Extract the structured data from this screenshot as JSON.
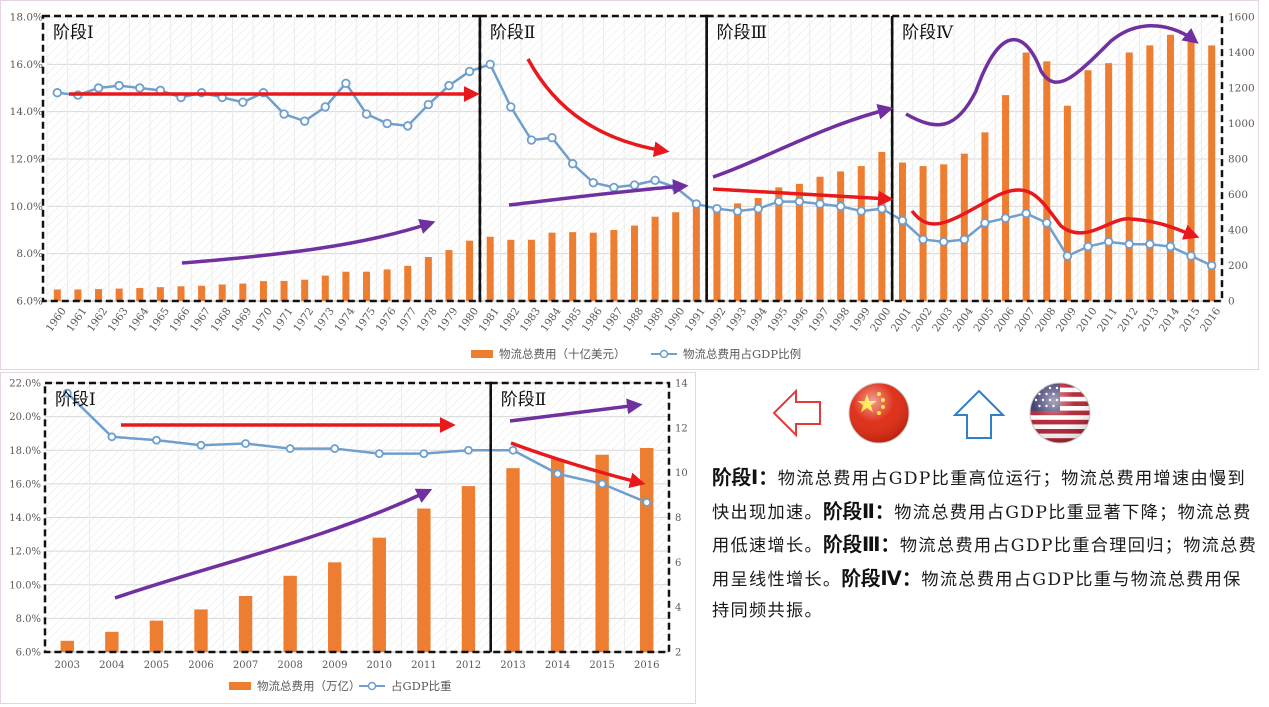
{
  "colors": {
    "bar": "#ED7D31",
    "line": "#6F9FCC",
    "red_arrow": "#E8191C",
    "purple_arrow": "#7030A0",
    "stage_border": "#111111",
    "hollow_arrow_red": "#E33B3B",
    "hollow_arrow_blue": "#2F80C8"
  },
  "chart_data": [
    {
      "type": "bar+line",
      "country": "US",
      "legend": [
        "物流总费用（十亿美元）",
        "物流总费用占GDP比例"
      ],
      "left_axis": {
        "min": 6,
        "max": 18,
        "step": 2,
        "format": "percent1"
      },
      "right_axis": {
        "min": 0,
        "max": 1600,
        "step": 200
      },
      "categories": [
        "1960",
        "1961",
        "1962",
        "1963",
        "1964",
        "1965",
        "1966",
        "1967",
        "1968",
        "1969",
        "1970",
        "1971",
        "1972",
        "1973",
        "1974",
        "1975",
        "1976",
        "1977",
        "1978",
        "1979",
        "1980",
        "1981",
        "1982",
        "1983",
        "1984",
        "1985",
        "1986",
        "1987",
        "1988",
        "1989",
        "1990",
        "1991",
        "1992",
        "1993",
        "1994",
        "1995",
        "1996",
        "1997",
        "1998",
        "1999",
        "2000",
        "2001",
        "2002",
        "2003",
        "2004",
        "2005",
        "2006",
        "2007",
        "2008",
        "2009",
        "2010",
        "2011",
        "2012",
        "2013",
        "2014",
        "2015",
        "2016"
      ],
      "series": [
        {
          "name": "物流总费用（十亿美元）",
          "kind": "bar",
          "axis": "right",
          "values": [
            65,
            65,
            67,
            70,
            73,
            78,
            83,
            86,
            93,
            98,
            112,
            113,
            120,
            143,
            165,
            165,
            178,
            198,
            248,
            287,
            340,
            362,
            345,
            345,
            385,
            388,
            385,
            400,
            425,
            475,
            500,
            560,
            540,
            550,
            580,
            640,
            660,
            700,
            730,
            760,
            840,
            780,
            760,
            770,
            830,
            950,
            1160,
            1400,
            1350,
            1100,
            1300,
            1340,
            1400,
            1440,
            1500,
            1460,
            1440
          ]
        },
        {
          "name": "物流总费用占GDP比例",
          "kind": "line",
          "axis": "left",
          "values": [
            14.8,
            14.7,
            15.0,
            15.1,
            15.0,
            14.9,
            14.6,
            14.8,
            14.6,
            14.4,
            14.8,
            13.9,
            13.6,
            14.2,
            15.2,
            13.9,
            13.5,
            13.4,
            14.3,
            15.1,
            15.7,
            16.0,
            14.2,
            12.8,
            12.9,
            11.8,
            11.0,
            10.8,
            10.9,
            11.1,
            10.8,
            10.1,
            9.9,
            9.8,
            9.9,
            10.2,
            10.2,
            10.1,
            10.0,
            9.8,
            9.9,
            9.4,
            8.6,
            8.5,
            8.6,
            9.3,
            9.5,
            9.7,
            9.3,
            7.9,
            8.3,
            8.5,
            8.4,
            8.4,
            8.3,
            7.9,
            7.5
          ]
        }
      ],
      "stages": [
        {
          "label": "阶段Ⅰ",
          "from": "1960",
          "to": "1980"
        },
        {
          "label": "阶段Ⅱ",
          "from": "1981",
          "to": "1991"
        },
        {
          "label": "阶段Ⅲ",
          "from": "1992",
          "to": "2000"
        },
        {
          "label": "阶段Ⅳ",
          "from": "2001",
          "to": "2016"
        }
      ]
    },
    {
      "type": "bar+line",
      "country": "China",
      "legend": [
        "物流总费用（万亿）",
        "占GDP比重"
      ],
      "left_axis": {
        "min": 6,
        "max": 22,
        "step": 2,
        "format": "percent1"
      },
      "right_axis": {
        "min": 2,
        "max": 14,
        "step": 2
      },
      "categories": [
        "2003",
        "2004",
        "2005",
        "2006",
        "2007",
        "2008",
        "2009",
        "2010",
        "2011",
        "2012",
        "2013",
        "2014",
        "2015",
        "2016"
      ],
      "series": [
        {
          "name": "物流总费用（万亿）",
          "kind": "bar",
          "axis": "right",
          "values": [
            2.5,
            2.9,
            3.4,
            3.9,
            4.5,
            5.4,
            6.0,
            7.1,
            8.4,
            9.4,
            10.2,
            10.6,
            10.8,
            11.1
          ]
        },
        {
          "name": "占GDP比重",
          "kind": "line",
          "axis": "left",
          "values": [
            21.4,
            18.8,
            18.6,
            18.3,
            18.4,
            18.1,
            18.1,
            17.8,
            17.8,
            18.0,
            18.0,
            16.6,
            16.0,
            14.9
          ]
        }
      ],
      "stages": [
        {
          "label": "阶段Ⅰ",
          "from": "2003",
          "to": "2012"
        },
        {
          "label": "阶段Ⅱ",
          "from": "2013",
          "to": "2016"
        }
      ]
    }
  ],
  "description": [
    {
      "bold": "阶段Ⅰ：",
      "text": "物流总费用占GDP比重高位运行；物流总费用增速由慢到快出现加速。"
    },
    {
      "bold": "阶段Ⅱ：",
      "text": "物流总费用占GDP比重显著下降；物流总费用低速增长。"
    },
    {
      "bold": "阶段Ⅲ：",
      "text": "物流总费用占GDP比重合理回归；物流总费用呈线性增长。"
    },
    {
      "bold": "阶段Ⅳ：",
      "text": "物流总费用占GDP比重与物流总费用保持同频共振。"
    }
  ],
  "icons": [
    "left-arrow-icon",
    "china-flag-icon",
    "up-arrow-icon",
    "usa-flag-icon"
  ]
}
